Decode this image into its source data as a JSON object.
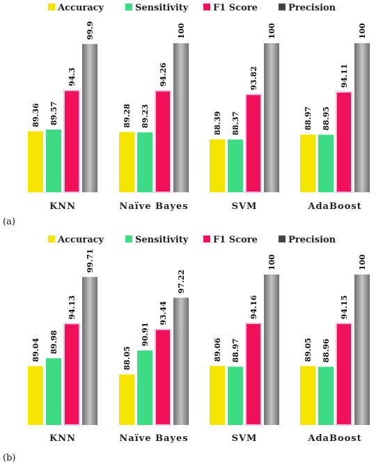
{
  "chart_data": [
    {
      "type": "bar",
      "panel_label": "(a)",
      "categories": [
        "KNN",
        "Naïve Bayes",
        "SVM",
        "AdaBoost"
      ],
      "series": [
        {
          "name": "Accuracy",
          "color": "#f5e400",
          "values": [
            89.36,
            89.28,
            88.39,
            88.97
          ],
          "labels": [
            "89.36",
            "89.28",
            "88.39",
            "88.97"
          ]
        },
        {
          "name": "Sensitivity",
          "color": "#3ddc84",
          "values": [
            89.57,
            89.23,
            88.37,
            88.95
          ],
          "labels": [
            "89.57",
            "89.23",
            "88.37",
            "88.95"
          ]
        },
        {
          "name": "F1 Score",
          "color": "#f0115a",
          "values": [
            94.3,
            94.26,
            93.82,
            94.11
          ],
          "labels": [
            "94.3",
            "94.26",
            "93.82",
            "94.11"
          ]
        },
        {
          "name": "Precision",
          "color": "#8a8a8a",
          "values": [
            99.9,
            100,
            100,
            100
          ],
          "labels": [
            "99.9",
            "100",
            "100",
            "100"
          ]
        }
      ],
      "ylim": [
        82,
        100
      ],
      "legend_position": "top",
      "grid": false
    },
    {
      "type": "bar",
      "panel_label": "(b)",
      "categories": [
        "KNN",
        "Naïve Bayes",
        "SVM",
        "AdaBoost"
      ],
      "series": [
        {
          "name": "Accuracy",
          "color": "#f5e400",
          "values": [
            89.04,
            88.05,
            89.06,
            89.05
          ],
          "labels": [
            "89.04",
            "88.05",
            "89.06",
            "89.05"
          ]
        },
        {
          "name": "Sensitivity",
          "color": "#3ddc84",
          "values": [
            89.98,
            90.91,
            88.97,
            88.96
          ],
          "labels": [
            "89.98",
            "90.91",
            "88.97",
            "88.96"
          ]
        },
        {
          "name": "F1 Score",
          "color": "#f0115a",
          "values": [
            94.13,
            93.44,
            94.16,
            94.15
          ],
          "labels": [
            "94.13",
            "93.44",
            "94.16",
            "94.15"
          ]
        },
        {
          "name": "Precision",
          "color": "#8a8a8a",
          "values": [
            99.71,
            97.22,
            100,
            100
          ],
          "labels": [
            "99.71",
            "97.22",
            "100",
            "100"
          ]
        }
      ],
      "ylim": [
        82,
        100
      ],
      "legend_position": "top",
      "grid": false
    }
  ]
}
